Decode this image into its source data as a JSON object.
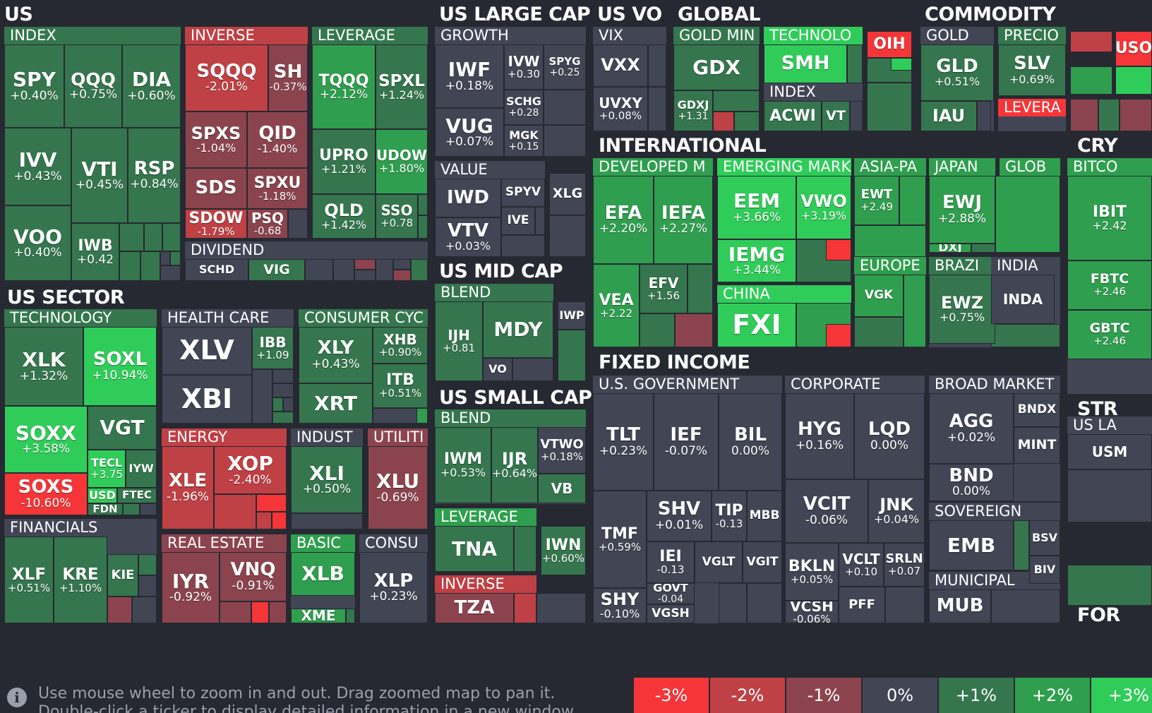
{
  "colors": {
    "r3": "#f63538",
    "r2": "#bf4045",
    "r1": "#8b444e",
    "z": "#414554",
    "g1": "#35764e",
    "g2": "#2f9e4f",
    "g3": "#30cc5a",
    "bg": "#262931"
  },
  "sections": {
    "us": "US",
    "us_sector": "US SECTOR",
    "us_large_cap": "US LARGE CAP",
    "us_vo": "US VO",
    "global": "GLOBAL",
    "commodity": "COMMODITY",
    "cry": "CRY",
    "international": "INTERNATIONAL",
    "us_mid_cap": "US MID CAP",
    "us_small_cap": "US SMALL CAP",
    "fixed_income": "FIXED INCOME",
    "str": "STR",
    "for": "FOR"
  },
  "groups": {
    "index": "INDEX",
    "inverse": "INVERSE",
    "leverage": "LEVERAGE",
    "dividend": "DIVIDEND",
    "technology": "TECHNOLOGY",
    "health_care": "HEALTH CARE",
    "consumer_cyc": "CONSUMER CYC",
    "energy": "ENERGY",
    "indust": "INDUST",
    "utiliti": "UTILITI",
    "financials": "FINANCIALS",
    "real_estate": "REAL ESTATE",
    "basic": "BASIC",
    "consu": "CONSU",
    "growth": "GROWTH",
    "value": "VALUE",
    "vix": "VIX",
    "gold_min": "GOLD MIN",
    "technolo": "TECHNOLO",
    "global_index": "INDEX",
    "gold": "GOLD",
    "precio": "PRECIO",
    "levera": "LEVERA",
    "developed": "DEVELOPED M",
    "emerging": "EMERGING MARK",
    "asia": "ASIA-PA",
    "japan": "JAPAN",
    "glob": "GLOB",
    "china": "CHINA",
    "europe": "EUROPE",
    "brazi": "BRAZI",
    "india": "INDIA",
    "bitco": "BITCO",
    "mid_blend": "BLEND",
    "small_blend": "BLEND",
    "small_leverage": "LEVERAGE",
    "small_inverse": "INVERSE",
    "us_government": "U.S. GOVERNMENT",
    "corporate": "CORPORATE",
    "broad_market": "BROAD MARKET",
    "sovereign": "SOVEREIGN",
    "municipal": "MUNICIPAL",
    "us_la": "US LA"
  },
  "tiles": {
    "SPY": {
      "t": "SPY",
      "p": "+0.40%",
      "c": "g1"
    },
    "QQQ": {
      "t": "QQQ",
      "p": "+0.75%",
      "c": "g1"
    },
    "DIA": {
      "t": "DIA",
      "p": "+0.60%",
      "c": "g1"
    },
    "IVV": {
      "t": "IVV",
      "p": "+0.43%",
      "c": "g1"
    },
    "VTI": {
      "t": "VTI",
      "p": "+0.45%",
      "c": "g1"
    },
    "RSP": {
      "t": "RSP",
      "p": "+0.84%",
      "c": "g1"
    },
    "VOO": {
      "t": "VOO",
      "p": "+0.40%",
      "c": "g1"
    },
    "IWB": {
      "t": "IWB",
      "p": "+0.42",
      "c": "g1"
    },
    "SQQQ": {
      "t": "SQQQ",
      "p": "-2.01%",
      "c": "r2"
    },
    "SH": {
      "t": "SH",
      "p": "-0.37%",
      "c": "r1"
    },
    "SPXS": {
      "t": "SPXS",
      "p": "-1.04%",
      "c": "r1"
    },
    "QID": {
      "t": "QID",
      "p": "-1.40%",
      "c": "r1"
    },
    "SDS": {
      "t": "SDS",
      "p": "",
      "c": "r1"
    },
    "SPXU": {
      "t": "SPXU",
      "p": "-1.18%",
      "c": "r1"
    },
    "SDOW": {
      "t": "SDOW",
      "p": "-1.79%",
      "c": "r2"
    },
    "PSQ": {
      "t": "PSQ",
      "p": "-0.68",
      "c": "r1"
    },
    "TQQQ": {
      "t": "TQQQ",
      "p": "+2.12%",
      "c": "g2"
    },
    "SPXL": {
      "t": "SPXL",
      "p": "+1.24%",
      "c": "g1"
    },
    "UPRO": {
      "t": "UPRO",
      "p": "+1.21%",
      "c": "g1"
    },
    "UDOW": {
      "t": "UDOW",
      "p": "+1.80%",
      "c": "g2"
    },
    "QLD": {
      "t": "QLD",
      "p": "+1.42%",
      "c": "g1"
    },
    "SSO": {
      "t": "SSO",
      "p": "+0.78",
      "c": "g1"
    },
    "SCHD": {
      "t": "SCHD",
      "p": "",
      "c": "z"
    },
    "VIG": {
      "t": "VIG",
      "p": "",
      "c": "g1"
    },
    "XLK": {
      "t": "XLK",
      "p": "+1.32%",
      "c": "g1"
    },
    "SOXL": {
      "t": "SOXL",
      "p": "+10.94%",
      "c": "g3"
    },
    "SOXX": {
      "t": "SOXX",
      "p": "+3.58%",
      "c": "g3"
    },
    "VGT": {
      "t": "VGT",
      "p": "",
      "c": "g1"
    },
    "SOXS": {
      "t": "SOXS",
      "p": "-10.60%",
      "c": "r3"
    },
    "TECL": {
      "t": "TECL",
      "p": "+3.75",
      "c": "g3"
    },
    "IYW": {
      "t": "IYW",
      "p": "",
      "c": "g1"
    },
    "USD": {
      "t": "USD",
      "p": "",
      "c": "g3"
    },
    "FTEC": {
      "t": "FTEC",
      "p": "",
      "c": "g1"
    },
    "FDN": {
      "t": "FDN",
      "p": "",
      "c": "g1"
    },
    "XLV": {
      "t": "XLV",
      "p": "",
      "c": "z"
    },
    "IBB": {
      "t": "IBB",
      "p": "+1.09",
      "c": "g1"
    },
    "XBI": {
      "t": "XBI",
      "p": "",
      "c": "z"
    },
    "XLY": {
      "t": "XLY",
      "p": "+0.43%",
      "c": "g1"
    },
    "XHB": {
      "t": "XHB",
      "p": "+0.90%",
      "c": "g1"
    },
    "ITB": {
      "t": "ITB",
      "p": "+0.51%",
      "c": "g1"
    },
    "XRT": {
      "t": "XRT",
      "p": "",
      "c": "g1"
    },
    "XLE": {
      "t": "XLE",
      "p": "-1.96%",
      "c": "r2"
    },
    "XOP": {
      "t": "XOP",
      "p": "-2.40%",
      "c": "r2"
    },
    "XLI": {
      "t": "XLI",
      "p": "+0.50%",
      "c": "g1"
    },
    "XLU": {
      "t": "XLU",
      "p": "-0.69%",
      "c": "r1"
    },
    "XLF": {
      "t": "XLF",
      "p": "+0.51%",
      "c": "g1"
    },
    "KRE": {
      "t": "KRE",
      "p": "+1.10%",
      "c": "g1"
    },
    "KIE": {
      "t": "KIE",
      "p": "",
      "c": "g1"
    },
    "IYR": {
      "t": "IYR",
      "p": "-0.92%",
      "c": "r1"
    },
    "VNQ": {
      "t": "VNQ",
      "p": "-0.91%",
      "c": "r1"
    },
    "XLB": {
      "t": "XLB",
      "p": "",
      "c": "g2"
    },
    "XME": {
      "t": "XME",
      "p": "",
      "c": "g2"
    },
    "XLP": {
      "t": "XLP",
      "p": "+0.23%",
      "c": "z"
    },
    "IWF": {
      "t": "IWF",
      "p": "+0.18%",
      "c": "z"
    },
    "IVW": {
      "t": "IVW",
      "p": "+0.30",
      "c": "z"
    },
    "SPYG": {
      "t": "SPYG",
      "p": "+0.25",
      "c": "z"
    },
    "SCHG": {
      "t": "SCHG",
      "p": "+0.28",
      "c": "z"
    },
    "VUG": {
      "t": "VUG",
      "p": "+0.07%",
      "c": "z"
    },
    "MGK": {
      "t": "MGK",
      "p": "+0.15",
      "c": "z"
    },
    "IWD": {
      "t": "IWD",
      "p": "",
      "c": "z"
    },
    "SPYV": {
      "t": "SPYV",
      "p": "",
      "c": "z"
    },
    "XLG": {
      "t": "XLG",
      "p": "",
      "c": "z"
    },
    "IVE": {
      "t": "IVE",
      "p": "",
      "c": "z"
    },
    "VTV": {
      "t": "VTV",
      "p": "+0.03%",
      "c": "z"
    },
    "VXX": {
      "t": "VXX",
      "p": "",
      "c": "z"
    },
    "UVXY": {
      "t": "UVXY",
      "p": "+0.08%",
      "c": "z"
    },
    "GDX": {
      "t": "GDX",
      "p": "",
      "c": "g1"
    },
    "GDXJ": {
      "t": "GDXJ",
      "p": "+1.31",
      "c": "g1"
    },
    "SMH": {
      "t": "SMH",
      "p": "",
      "c": "g3"
    },
    "OIH": {
      "t": "OIH",
      "p": "",
      "c": "r3"
    },
    "ACWI": {
      "t": "ACWI",
      "p": "",
      "c": "g1"
    },
    "VT": {
      "t": "VT",
      "p": "",
      "c": "g1"
    },
    "GLD": {
      "t": "GLD",
      "p": "+0.51%",
      "c": "g1"
    },
    "SLV": {
      "t": "SLV",
      "p": "+0.69%",
      "c": "g1"
    },
    "IAU": {
      "t": "IAU",
      "p": "",
      "c": "g1"
    },
    "USO": {
      "t": "USO",
      "p": "",
      "c": "r3"
    },
    "IBIT": {
      "t": "IBIT",
      "p": "+2.42",
      "c": "g2"
    },
    "FBTC": {
      "t": "FBTC",
      "p": "+2.46",
      "c": "g2"
    },
    "GBTC": {
      "t": "GBTC",
      "p": "+2.46",
      "c": "g2"
    },
    "EFA": {
      "t": "EFA",
      "p": "+2.20%",
      "c": "g2"
    },
    "IEFA": {
      "t": "IEFA",
      "p": "+2.27%",
      "c": "g2"
    },
    "EEM": {
      "t": "EEM",
      "p": "+3.66%",
      "c": "g3"
    },
    "VWO": {
      "t": "VWO",
      "p": "+3.19%",
      "c": "g3"
    },
    "IEMG": {
      "t": "IEMG",
      "p": "+3.44%",
      "c": "g3"
    },
    "VEA": {
      "t": "VEA",
      "p": "+2.22",
      "c": "g2"
    },
    "EFV": {
      "t": "EFV",
      "p": "+1.56",
      "c": "g1"
    },
    "EWT": {
      "t": "EWT",
      "p": "+2.49",
      "c": "g2"
    },
    "EWJ": {
      "t": "EWJ",
      "p": "+2.88%",
      "c": "g2"
    },
    "DXJ": {
      "t": "DXJ",
      "p": "",
      "c": "g2"
    },
    "FXI": {
      "t": "FXI",
      "p": "",
      "c": "g3"
    },
    "VGK": {
      "t": "VGK",
      "p": "",
      "c": "g2"
    },
    "EWZ": {
      "t": "EWZ",
      "p": "+0.75%",
      "c": "g1"
    },
    "INDA": {
      "t": "INDA",
      "p": "",
      "c": "z"
    },
    "IWP": {
      "t": "IWP",
      "p": "",
      "c": "z"
    },
    "MDY": {
      "t": "MDY",
      "p": "",
      "c": "g1"
    },
    "IJH": {
      "t": "IJH",
      "p": "+0.81",
      "c": "g1"
    },
    "VO": {
      "t": "VO",
      "p": "",
      "c": "z"
    },
    "IWM": {
      "t": "IWM",
      "p": "+0.53%",
      "c": "g1"
    },
    "IJR": {
      "t": "IJR",
      "p": "+0.64%",
      "c": "g1"
    },
    "VTWO": {
      "t": "VTWO",
      "p": "+0.18%",
      "c": "z"
    },
    "VB": {
      "t": "VB",
      "p": "",
      "c": "g1"
    },
    "TNA": {
      "t": "TNA",
      "p": "",
      "c": "g1"
    },
    "IWN": {
      "t": "IWN",
      "p": "+0.60%",
      "c": "g1"
    },
    "TZA": {
      "t": "TZA",
      "p": "",
      "c": "r1"
    },
    "TLT": {
      "t": "TLT",
      "p": "+0.23%",
      "c": "z"
    },
    "IEF": {
      "t": "IEF",
      "p": "-0.07%",
      "c": "z"
    },
    "BIL": {
      "t": "BIL",
      "p": "0.00%",
      "c": "z"
    },
    "HYG": {
      "t": "HYG",
      "p": "+0.16%",
      "c": "z"
    },
    "LQD": {
      "t": "LQD",
      "p": "0.00%",
      "c": "z"
    },
    "AGG": {
      "t": "AGG",
      "p": "+0.02%",
      "c": "z"
    },
    "BNDX": {
      "t": "BNDX",
      "p": "",
      "c": "z"
    },
    "MINT": {
      "t": "MINT",
      "p": "",
      "c": "z"
    },
    "BND": {
      "t": "BND",
      "p": "0.00%",
      "c": "z"
    },
    "TMF": {
      "t": "TMF",
      "p": "+0.59%",
      "c": "z"
    },
    "SHV": {
      "t": "SHV",
      "p": "+0.01%",
      "c": "z"
    },
    "TIP": {
      "t": "TIP",
      "p": "-0.13",
      "c": "z"
    },
    "MBB": {
      "t": "MBB",
      "p": "",
      "c": "z"
    },
    "VCIT": {
      "t": "VCIT",
      "p": "-0.06%",
      "c": "z"
    },
    "JNK": {
      "t": "JNK",
      "p": "+0.04%",
      "c": "z"
    },
    "IEI": {
      "t": "IEI",
      "p": "-0.13",
      "c": "z"
    },
    "VGLT": {
      "t": "VGLT",
      "p": "",
      "c": "z"
    },
    "VGIT": {
      "t": "VGIT",
      "p": "",
      "c": "z"
    },
    "BKLN": {
      "t": "BKLN",
      "p": "+0.05%",
      "c": "z"
    },
    "VCLT": {
      "t": "VCLT",
      "p": "+0.10",
      "c": "z"
    },
    "SRLN": {
      "t": "SRLN",
      "p": "+0.07",
      "c": "z"
    },
    "GOVT": {
      "t": "GOVT",
      "p": "-0.04",
      "c": "z"
    },
    "SHY": {
      "t": "SHY",
      "p": "-0.10%",
      "c": "z"
    },
    "PFF": {
      "t": "PFF",
      "p": "",
      "c": "z"
    },
    "VCSH": {
      "t": "VCSH",
      "p": "-0.06%",
      "c": "z"
    },
    "VGSH": {
      "t": "VGSH",
      "p": "",
      "c": "z"
    },
    "EMB": {
      "t": "EMB",
      "p": "",
      "c": "z"
    },
    "BSV": {
      "t": "BSV",
      "p": "",
      "c": "z"
    },
    "BIV": {
      "t": "BIV",
      "p": "",
      "c": "z"
    },
    "MUB": {
      "t": "MUB",
      "p": "",
      "c": "z"
    },
    "USMV": {
      "t": "USM",
      "p": "",
      "c": "z"
    }
  },
  "footer": {
    "info_icon": "info-icon",
    "help_line1": "Use mouse wheel to zoom in and out. Drag zoomed map to pan it.",
    "help_line2": "Double-click a ticker to display detailed information in a new window.",
    "legend": [
      {
        "label": "-3%",
        "c": "r3"
      },
      {
        "label": "-2%",
        "c": "r2"
      },
      {
        "label": "-1%",
        "c": "r1"
      },
      {
        "label": "0%",
        "c": "z"
      },
      {
        "label": "+1%",
        "c": "g1"
      },
      {
        "label": "+2%",
        "c": "g2"
      },
      {
        "label": "+3%",
        "c": "g3"
      }
    ]
  }
}
